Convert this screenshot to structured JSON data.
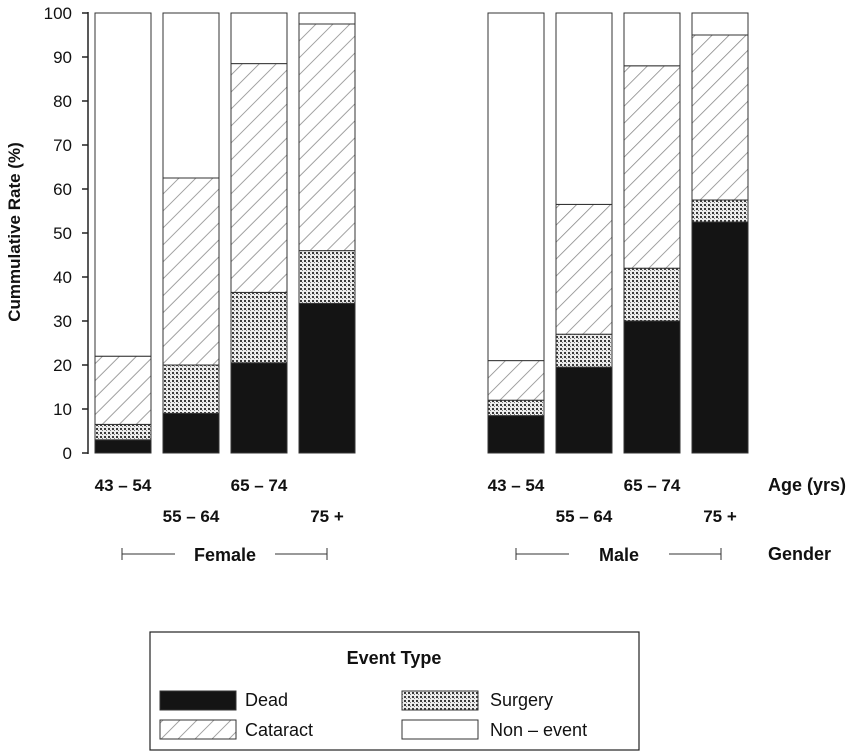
{
  "chart_data": {
    "type": "bar",
    "stacked": true,
    "ylabel": "Cummulative Rate (%)",
    "ylim": [
      0,
      100
    ],
    "yticks": [
      0,
      10,
      20,
      30,
      40,
      50,
      60,
      70,
      80,
      90,
      100
    ],
    "xlabel": "Age (yrs)",
    "group_axis_label": "Gender",
    "groups": [
      {
        "name": "Female",
        "bars": [
          {
            "category": "43 – 54",
            "dead": 3,
            "surgery": 3.5,
            "cataract": 15.5
          },
          {
            "category": "55 – 64",
            "dead": 9,
            "surgery": 11,
            "cataract": 42.5
          },
          {
            "category": "65 – 74",
            "dead": 20.5,
            "surgery": 16,
            "cataract": 52
          },
          {
            "category": "75 +",
            "dead": 34,
            "surgery": 12,
            "cataract": 51.5
          }
        ]
      },
      {
        "name": "Male",
        "bars": [
          {
            "category": "43 – 54",
            "dead": 8.5,
            "surgery": 3.5,
            "cataract": 9
          },
          {
            "category": "55 – 64",
            "dead": 19.5,
            "surgery": 7.5,
            "cataract": 29.5
          },
          {
            "category": "65 – 74",
            "dead": 30,
            "surgery": 12,
            "cataract": 46
          },
          {
            "category": "75 +",
            "dead": 52.5,
            "surgery": 5,
            "cataract": 37.5
          }
        ]
      }
    ],
    "legend": {
      "title": "Event Type",
      "placement": "bottom",
      "entries": [
        {
          "key": "dead",
          "label": "Dead"
        },
        {
          "key": "surgery",
          "label": "Surgery"
        },
        {
          "key": "cataract",
          "label": "Cataract"
        },
        {
          "key": "nonevent",
          "label": "Non – event"
        }
      ]
    }
  }
}
